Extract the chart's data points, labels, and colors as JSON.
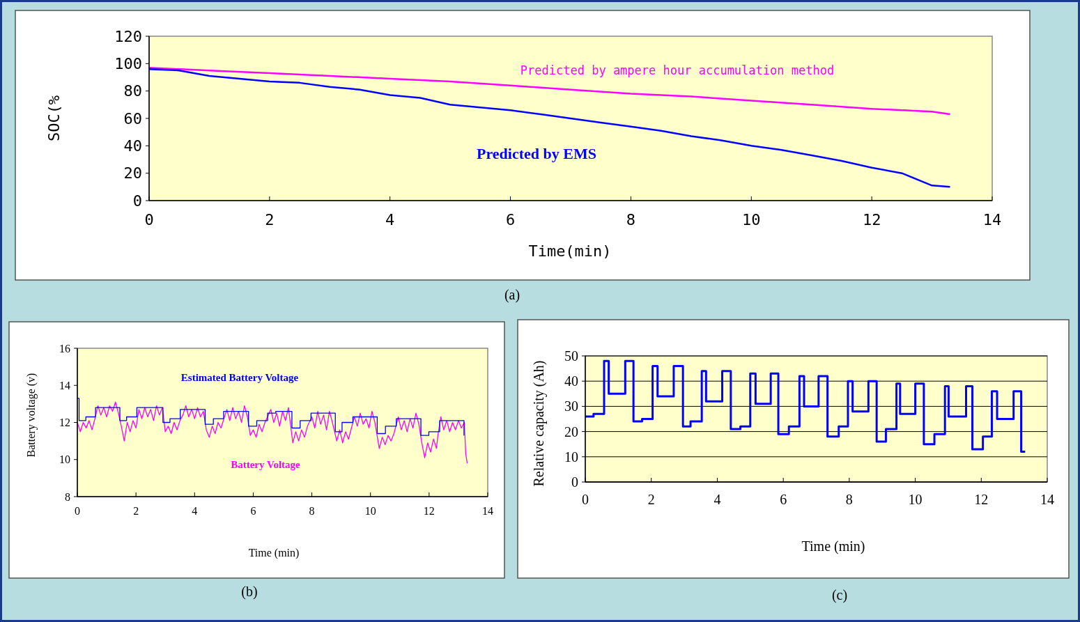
{
  "chart_data": [
    {
      "type": "line",
      "xlabel": "Time(min)",
      "ylabel": "SOC(%",
      "annotations": [
        "(a)"
      ],
      "xlim": [
        0,
        14
      ],
      "xticks": [
        0,
        2,
        4,
        6,
        8,
        10,
        12,
        14
      ],
      "ylim": [
        0,
        120
      ],
      "yticks": [
        0,
        20,
        40,
        60,
        80,
        100,
        120
      ],
      "grid": false,
      "series": [
        {
          "name": "Predicted by ampere hour accumulation method",
          "color": "#ff00ff",
          "x": [
            0,
            1,
            2,
            3,
            4,
            5,
            6,
            7,
            8,
            9,
            10,
            11,
            12,
            13,
            13.3
          ],
          "values": [
            97,
            95,
            93,
            91,
            89,
            87,
            84,
            81,
            78,
            76,
            73,
            70,
            67,
            65,
            63
          ]
        },
        {
          "name": "Predicted by EMS",
          "color": "#0000ff",
          "x": [
            0,
            0.5,
            1,
            1.5,
            2,
            2.5,
            3,
            3.5,
            4,
            4.5,
            5,
            5.5,
            6,
            6.5,
            7,
            7.5,
            8,
            8.5,
            9,
            9.5,
            10,
            10.5,
            11,
            11.5,
            12,
            12.5,
            13,
            13.3
          ],
          "values": [
            96,
            95,
            91,
            89,
            87,
            86,
            83,
            81,
            77,
            75,
            70,
            68,
            66,
            63,
            60,
            57,
            54,
            51,
            47,
            44,
            40,
            37,
            33,
            29,
            24,
            20,
            11,
            10
          ]
        }
      ]
    },
    {
      "type": "line",
      "xlabel": "Time (min)",
      "ylabel": "Battery voltage (v)",
      "annotations": [
        "(b)"
      ],
      "xlim": [
        0,
        14
      ],
      "xticks": [
        0,
        2,
        4,
        6,
        8,
        10,
        12,
        14
      ],
      "ylim": [
        8,
        16
      ],
      "yticks": [
        8,
        10,
        12,
        14,
        16
      ],
      "grid": false,
      "series": [
        {
          "name": "Battery Voltage",
          "color": "#ff00ff",
          "x": [
            0,
            0.1,
            0.2,
            0.3,
            0.4,
            0.5,
            0.6,
            0.7,
            0.8,
            0.9,
            1.0,
            1.1,
            1.2,
            1.3,
            1.4,
            1.5,
            1.6,
            1.7,
            1.8,
            1.9,
            2.0,
            2.1,
            2.2,
            2.3,
            2.4,
            2.5,
            2.6,
            2.7,
            2.8,
            2.9,
            3.0,
            3.1,
            3.2,
            3.3,
            3.4,
            3.5,
            3.6,
            3.7,
            3.8,
            3.9,
            4.0,
            4.1,
            4.2,
            4.3,
            4.4,
            4.5,
            4.6,
            4.7,
            4.8,
            4.9,
            5.0,
            5.1,
            5.2,
            5.3,
            5.4,
            5.5,
            5.6,
            5.7,
            5.8,
            5.9,
            6.0,
            6.1,
            6.2,
            6.3,
            6.4,
            6.6,
            6.7,
            6.8,
            6.9,
            7.0,
            7.1,
            7.2,
            7.35,
            7.45,
            7.55,
            7.65,
            7.75,
            7.85,
            8.0,
            8.1,
            8.2,
            8.3,
            8.4,
            8.5,
            8.6,
            8.7,
            8.85,
            8.95,
            9.05,
            9.15,
            9.25,
            9.35,
            9.45,
            9.55,
            9.65,
            9.75,
            9.85,
            9.95,
            10.05,
            10.15,
            10.3,
            10.4,
            10.5,
            10.6,
            10.7,
            10.8,
            10.95,
            11.05,
            11.15,
            11.25,
            11.35,
            11.45,
            11.55,
            11.65,
            11.75,
            11.85,
            11.95,
            12.05,
            12.15,
            12.25,
            12.3,
            12.4,
            12.5,
            12.6,
            12.7,
            12.8,
            12.9,
            13.0,
            13.1,
            13.2,
            13.25,
            13.3
          ],
          "values": [
            12.0,
            11.5,
            12.0,
            11.7,
            12.1,
            11.6,
            12.2,
            12.9,
            12.4,
            12.8,
            12.3,
            12.9,
            12.6,
            13.1,
            12.5,
            11.8,
            11.0,
            12.0,
            11.5,
            12.1,
            11.7,
            12.7,
            12.2,
            12.8,
            12.3,
            12.7,
            12.1,
            12.9,
            12.4,
            12.8,
            11.5,
            11.8,
            11.4,
            12.0,
            11.6,
            12.1,
            12.4,
            12.9,
            12.3,
            12.7,
            12.2,
            12.8,
            12.3,
            12.6,
            11.6,
            11.2,
            11.8,
            11.4,
            12.0,
            11.7,
            12.2,
            12.7,
            12.1,
            12.8,
            12.2,
            12.6,
            12.0,
            12.9,
            12.3,
            11.3,
            11.6,
            11.2,
            11.9,
            11.5,
            12.0,
            12.7,
            12.0,
            12.5,
            11.8,
            12.6,
            12.1,
            12.8,
            10.9,
            11.5,
            11.0,
            11.6,
            11.2,
            11.8,
            12.3,
            11.7,
            12.6,
            11.9,
            12.4,
            11.6,
            12.6,
            12.0,
            11.0,
            11.6,
            10.9,
            11.5,
            11.1,
            11.7,
            12.3,
            11.8,
            12.5,
            11.9,
            12.2,
            11.7,
            12.6,
            12.0,
            10.6,
            11.2,
            10.8,
            11.3,
            11.0,
            11.4,
            12.3,
            11.6,
            12.1,
            11.5,
            12.2,
            11.7,
            12.5,
            11.9,
            10.9,
            10.1,
            10.9,
            10.4,
            11.1,
            10.6,
            11.3,
            12.3,
            11.6,
            12.1,
            11.5,
            12.0,
            11.6,
            12.1,
            11.7,
            12.0,
            10.3,
            9.8
          ]
        },
        {
          "name": "Estimated Battery Voltage",
          "type": "step",
          "color": "#0000ff",
          "x": [
            0,
            0.06,
            0.29,
            0.62,
            1.45,
            1.68,
            2.03,
            2.92,
            3.16,
            3.51,
            4.36,
            4.64,
            4.99,
            5.84,
            6.12,
            6.49,
            6.77,
            7.32,
            7.6,
            7.97,
            8.8,
            9.03,
            9.4,
            10.23,
            10.51,
            10.88,
            11.72,
            11.99,
            12.36,
            13.19
          ],
          "values": [
            13.3,
            12.1,
            12.3,
            12.8,
            12.1,
            12.3,
            12.8,
            12.0,
            12.2,
            12.7,
            11.9,
            12.2,
            12.6,
            11.8,
            12.1,
            12.5,
            12.6,
            11.7,
            12.1,
            12.5,
            11.5,
            12.0,
            12.3,
            11.4,
            11.8,
            12.2,
            11.3,
            11.5,
            12.1,
            11.3
          ]
        }
      ]
    },
    {
      "type": "step",
      "xlabel": "Time (min)",
      "ylabel": "Relative capacity (Ah)",
      "annotations": [
        "(c)"
      ],
      "xlim": [
        0,
        14
      ],
      "xticks": [
        0,
        2,
        4,
        6,
        8,
        10,
        12,
        14
      ],
      "ylim": [
        0,
        50
      ],
      "yticks": [
        0,
        10,
        20,
        30,
        40,
        50
      ],
      "grid": "y",
      "series": [
        {
          "color": "#0000ff",
          "x": [
            0,
            0.25,
            0.57,
            0.71,
            1.21,
            1.46,
            1.72,
            2.04,
            2.19,
            2.68,
            2.96,
            3.19,
            3.53,
            3.66,
            4.15,
            4.41,
            4.7,
            5.0,
            5.16,
            5.62,
            5.85,
            6.17,
            6.49,
            6.63,
            7.07,
            7.34,
            7.68,
            7.96,
            8.1,
            8.58,
            8.83,
            9.11,
            9.43,
            9.54,
            10.0,
            10.26,
            10.58,
            10.9,
            11.01,
            11.54,
            11.73,
            12.05,
            12.32,
            12.48,
            12.98,
            13.21,
            13.33
          ],
          "values": [
            26,
            27,
            48,
            35,
            48,
            24,
            25,
            46,
            34,
            46,
            22,
            24,
            44,
            32,
            44,
            21,
            22,
            43,
            31,
            43,
            19,
            22,
            42,
            30,
            42,
            18,
            22,
            40,
            28,
            40,
            16,
            21,
            39,
            27,
            39,
            15,
            19,
            38,
            26,
            38,
            13,
            18,
            36,
            25,
            36,
            12,
            12
          ]
        }
      ]
    }
  ]
}
